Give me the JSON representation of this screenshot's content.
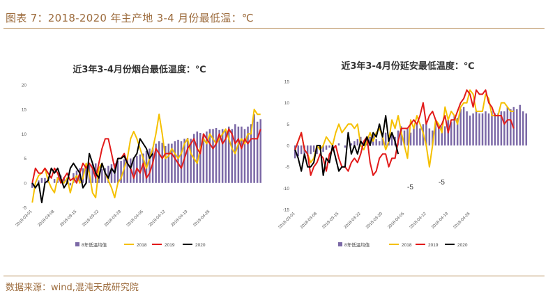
{
  "figure": {
    "title": "图表 7：2018-2020 年主产地 3-4 月份最低温：℃",
    "source": "数据来源：wind,混沌天成研究院"
  },
  "colors": {
    "avg_bar": "#7b68a6",
    "y2018": "#f5c000",
    "y2019": "#e21a1a",
    "y2020": "#000000",
    "accent": "#9c6b3c"
  },
  "chart_data": [
    {
      "type": "bar+line",
      "title": "近3年3-4月份烟台最低温度：℃",
      "ylim": [
        -5,
        20
      ],
      "yticks": [
        -5,
        0,
        5,
        10,
        15,
        20
      ],
      "xticks": [
        "2018-03-01",
        "2018-03-08",
        "2018-03-15",
        "2018-03-22",
        "2018-03-29",
        "2018-04-05",
        "2018-04-12",
        "2018-04-19",
        "2018-04-26"
      ],
      "legend": [
        "8年低温均值",
        "2018",
        "2019",
        "2020"
      ],
      "bars": {
        "name": "8年低温均值",
        "values": [
          -1.0,
          0.0,
          0.5,
          1.0,
          1.0,
          1.2,
          0.0,
          0.8,
          1.2,
          1.5,
          1.2,
          1.0,
          -0.5,
          2.0,
          2.5,
          3.0,
          3.0,
          3.5,
          4.0,
          3.8,
          4.0,
          2.5,
          2.8,
          3.0,
          3.5,
          3.8,
          4.0,
          4.5,
          4.5,
          4.8,
          5.0,
          5.0,
          5.2,
          5.5,
          5.8,
          6.0,
          6.5,
          7.0,
          7.2,
          8.0,
          8.5,
          8.2,
          7.5,
          8.0,
          8.0,
          8.5,
          8.8,
          8.5,
          9.0,
          9.2,
          9.0,
          10.0,
          10.5,
          10.2,
          10.0,
          10.5,
          11.0,
          11.0,
          11.2,
          10.8,
          11.0,
          10.8,
          11.5,
          11.0,
          12.0,
          11.5,
          11.5,
          11.0,
          11.5,
          12.0,
          14.0,
          12.5,
          13.0
        ]
      },
      "lines": [
        {
          "name": "2018",
          "values": [
            -4.0,
            0.0,
            1.5,
            2.0,
            3.0,
            0.5,
            -1.0,
            -2.0,
            1.0,
            0.5,
            0.0,
            1.0,
            -2.0,
            0.5,
            1.5,
            0.0,
            1.0,
            4.0,
            2.0,
            -2.0,
            -3.0,
            3.0,
            4.0,
            2.0,
            0.5,
            -1.0,
            -3.0,
            0.0,
            1.0,
            3.0,
            5.0,
            9.0,
            10.5,
            9.0,
            7.0,
            5.0,
            3.0,
            5.0,
            7.0,
            10.0,
            14.0,
            10.0,
            5.0,
            5.5,
            7.0,
            6.0,
            5.0,
            6.0,
            8.0,
            9.0,
            6.0,
            5.0,
            4.0,
            7.0,
            9.0,
            8.0,
            10.0,
            9.0,
            8.0,
            9.0,
            10.0,
            11.0,
            9.0,
            7.0,
            6.0,
            8.0,
            9.0,
            8.0,
            10.0,
            10.0,
            15.0,
            14.0,
            14.0
          ]
        },
        {
          "name": "2019",
          "values": [
            0.0,
            3.0,
            2.0,
            2.0,
            3.0,
            2.0,
            1.0,
            3.0,
            2.0,
            0.0,
            1.0,
            2.0,
            0.5,
            1.0,
            0.0,
            2.0,
            4.0,
            3.0,
            4.0,
            3.0,
            1.0,
            4.0,
            7.0,
            9.0,
            9.0,
            6.0,
            3.0,
            5.0,
            5.0,
            6.0,
            4.0,
            3.0,
            1.0,
            3.0,
            2.0,
            4.0,
            1.0,
            2.0,
            4.0,
            7.0,
            6.0,
            5.0,
            6.0,
            6.0,
            6.0,
            5.0,
            4.0,
            3.0,
            5.0,
            7.0,
            8.0,
            9.0,
            7.0,
            6.0,
            10.0,
            9.0,
            8.0,
            7.0,
            8.0,
            10.0,
            8.0,
            9.0,
            11.0,
            10.0,
            8.0,
            9.0,
            7.0,
            9.0,
            8.0,
            9.0,
            9.0,
            9.0,
            11.0
          ]
        },
        {
          "name": "2020",
          "values": [
            0.0,
            -1.0,
            0.0,
            -4.0,
            0.0,
            0.5,
            3.0,
            2.0,
            3.0,
            1.0,
            -1.0,
            0.0,
            3.0,
            4.0,
            3.0,
            2.0,
            -1.0,
            0.0,
            6.0,
            4.0,
            2.0,
            1.0,
            4.0,
            2.0,
            1.0,
            3.0,
            2.0,
            5.0,
            5.0,
            5.5,
            4.0,
            3.0,
            5.0,
            6.0,
            9.0,
            8.0,
            7.0,
            5.0,
            6.0
          ]
        }
      ]
    },
    {
      "type": "bar+line",
      "title": "近3年3-4月份延安最低温度：℃",
      "ylim": [
        -15,
        15
      ],
      "yticks": [
        -15,
        -10,
        -5,
        0,
        5,
        10,
        15
      ],
      "xticks": [
        "2018-03-01",
        "2018-03-08",
        "2018-03-15",
        "2018-03-22",
        "2018-03-29",
        "2018-04-05",
        "2018-04-12",
        "2018-04-19",
        "2018-04-26"
      ],
      "legend": [
        "8年低温均值",
        "2018",
        "2019",
        "2020"
      ],
      "annotations": [
        "-5",
        "-5"
      ],
      "bars": {
        "name": "8年低温均值",
        "values": [
          -3.0,
          -2.5,
          -2.0,
          -3.0,
          -2.5,
          -2.0,
          -1.5,
          -2.0,
          -1.0,
          -1.5,
          -1.0,
          -0.5,
          -0.5,
          0.0,
          0.5,
          0.0,
          -0.5,
          0.0,
          0.5,
          1.0,
          1.5,
          2.0,
          1.0,
          1.5,
          2.0,
          2.5,
          1.5,
          1.0,
          2.0,
          3.0,
          2.5,
          3.0,
          2.0,
          3.5,
          4.5,
          3.5,
          4.0,
          3.0,
          4.5,
          5.0,
          4.0,
          5.0,
          5.5,
          4.0,
          3.5,
          5.5,
          4.0,
          4.5,
          4.5,
          6.0,
          5.5,
          7.0,
          6.5,
          8.5,
          9.0,
          8.0,
          7.0,
          7.5,
          8.0,
          7.5,
          7.5,
          8.0,
          7.5,
          8.0,
          7.5,
          7.5,
          8.0,
          8.0,
          9.0,
          8.5,
          9.0,
          8.5,
          9.5,
          8.0,
          7.5
        ]
      },
      "lines": [
        {
          "name": "2018",
          "values": [
            -1.0,
            1.0,
            3.0,
            -1.0,
            -2.0,
            -4.0,
            -3.0,
            0.0,
            -1.0,
            0.0,
            2.0,
            1.0,
            0.0,
            3.0,
            5.0,
            3.0,
            4.0,
            5.0,
            5.0,
            4.0,
            5.0,
            0.0,
            -1.0,
            1.0,
            3.0,
            1.0,
            3.0,
            4.0,
            2.0,
            -1.0,
            1.0,
            6.0,
            4.0,
            7.0,
            3.0,
            0.0,
            -3.0,
            6.0,
            4.0,
            7.0,
            5.0,
            3.0,
            0.0,
            -5.0,
            0.0,
            6.0,
            5.0,
            3.0,
            9.0,
            6.0,
            8.0,
            7.0,
            5.0,
            9.0,
            10.0,
            10.0,
            13.0,
            12.0,
            8.0,
            8.0,
            8.0,
            12.0,
            11.0,
            7.0,
            7.0,
            7.0,
            10.0,
            10.0,
            9.0,
            8.0,
            8.0
          ]
        },
        {
          "name": "2019",
          "values": [
            -1.0,
            1.0,
            3.0,
            -1.0,
            -2.0,
            -7.0,
            -5.0,
            -4.0,
            -2.0,
            -3.0,
            -6.0,
            -2.0,
            -1.0,
            0.0,
            -3.0,
            -5.0,
            -5.0,
            -6.0,
            -4.0,
            -3.0,
            -4.0,
            -2.0,
            1.0,
            2.0,
            -4.0,
            -7.0,
            -6.0,
            -3.0,
            -2.0,
            -2.0,
            -5.0,
            -3.0,
            -3.0,
            1.0,
            4.0,
            4.0,
            4.0,
            5.0,
            6.0,
            5.0,
            7.0,
            10.0,
            5.0,
            7.0,
            8.0,
            6.0,
            4.0,
            5.0,
            7.0,
            3.0,
            6.0,
            6.0,
            8.0,
            10.0,
            11.0,
            13.0,
            12.0,
            9.0,
            13.0,
            12.0,
            12.0,
            13.0,
            10.0,
            9.0,
            7.0,
            7.0,
            7.0,
            5.0,
            6.0,
            6.0,
            4.0
          ]
        },
        {
          "name": "2020",
          "values": [
            -1.0,
            -3.0,
            -6.0,
            -2.0,
            -5.0,
            -5.0,
            -4.0,
            0.0,
            0.0,
            -7.0,
            -3.0,
            -4.0,
            0.0,
            -3.0,
            -6.0,
            -5.0,
            -5.0,
            3.0,
            -2.0,
            0.0,
            -2.0,
            1.0,
            0.0,
            2.0,
            0.0,
            3.0,
            2.0,
            5.0,
            2.0,
            7.0,
            1.0,
            3.0,
            1.0,
            -2.0
          ]
        }
      ]
    }
  ]
}
